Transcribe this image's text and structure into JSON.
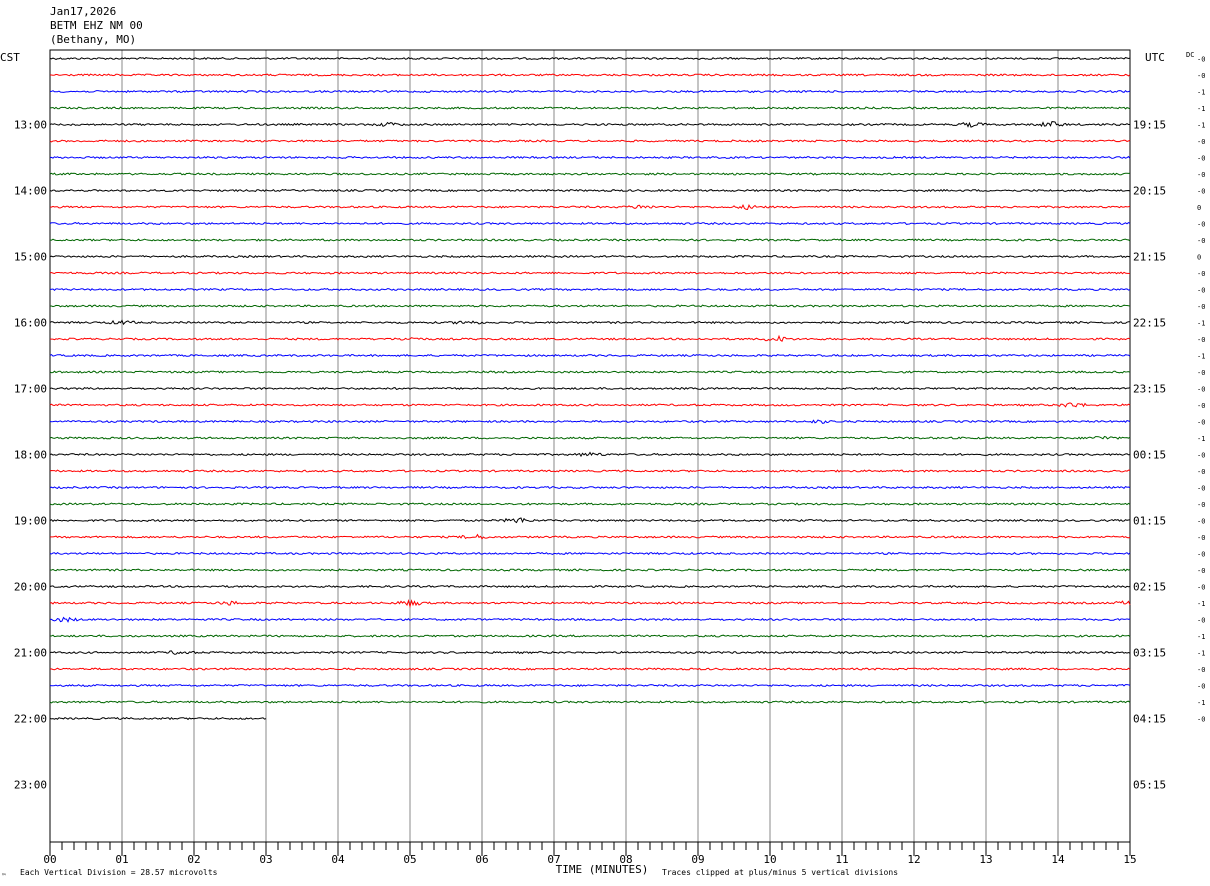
{
  "header": {
    "date": "Jan17,2026",
    "station": "BETM EHZ NM 00",
    "location": "(Bethany, MO)"
  },
  "labels": {
    "left_tz": "CST",
    "right_tz": "UTC",
    "dc_header": "DC",
    "x_title": "TIME (MINUTES)",
    "footer_left": "Each Vertical Division =   28.57 microvolts",
    "footer_right": "Traces clipped at plus/minus 5 vertical divisions",
    "corner_mark": "™"
  },
  "colors": {
    "trace_cycle": [
      "#000000",
      "#ff0000",
      "#0000ff",
      "#006600"
    ],
    "grid": "#888888",
    "axis": "#000000"
  },
  "chart_data": {
    "type": "line",
    "title": "BETM EHZ NM 00",
    "xlabel": "TIME (MINUTES)",
    "ylabel": "",
    "xlim": [
      0,
      15
    ],
    "x_ticks": [
      "00",
      "01",
      "02",
      "03",
      "04",
      "05",
      "06",
      "07",
      "08",
      "09",
      "10",
      "11",
      "12",
      "13",
      "14",
      "15"
    ],
    "grid": true,
    "rows_per_hour": 4,
    "total_rows": 44,
    "left_hour_labels": [
      "13:00",
      "14:00",
      "15:00",
      "16:00",
      "17:00",
      "18:00",
      "19:00",
      "20:00",
      "21:00",
      "22:00",
      "23:00"
    ],
    "right_hour_labels": [
      "19:15",
      "20:15",
      "21:15",
      "22:15",
      "23:15",
      "00:15",
      "01:15",
      "02:15",
      "03:15",
      "04:15",
      "05:15"
    ],
    "first_hour_label_row": 4,
    "rows_with_data": 41,
    "last_row_end_minute": 3,
    "dc_values": [
      "-0",
      "-0",
      "-1",
      "-1",
      "-1",
      "-0",
      "-0",
      "-0",
      "-0",
      "0",
      "-0",
      "-0",
      "0",
      "-0",
      "-0",
      "-0",
      "-1",
      "-0",
      "-1",
      "-0",
      "-0",
      "-0",
      "-0",
      "-1",
      "-0",
      "-0",
      "-0",
      "-0",
      "-0",
      "-0",
      "-0",
      "-0",
      "-0",
      "-1",
      "-0",
      "-1",
      "-1",
      "-0",
      "-0",
      "-1",
      "-0"
    ],
    "events": [
      {
        "row": 4,
        "minute": 4.7,
        "amp": 1.5
      },
      {
        "row": 4,
        "minute": 12.8,
        "amp": 1.8
      },
      {
        "row": 4,
        "minute": 13.9,
        "amp": 2.5
      },
      {
        "row": 9,
        "minute": 8.2,
        "amp": 1.5
      },
      {
        "row": 9,
        "minute": 9.7,
        "amp": 1.8
      },
      {
        "row": 17,
        "minute": 5.0,
        "amp": 1.2
      },
      {
        "row": 16,
        "minute": 1.0,
        "amp": 1.5
      },
      {
        "row": 16,
        "minute": 5.8,
        "amp": 1.5
      },
      {
        "row": 17,
        "minute": 10.1,
        "amp": 2.5
      },
      {
        "row": 21,
        "minute": 14.2,
        "amp": 2.2
      },
      {
        "row": 22,
        "minute": 10.7,
        "amp": 1.2
      },
      {
        "row": 23,
        "minute": 14.6,
        "amp": 1.5
      },
      {
        "row": 24,
        "minute": 7.5,
        "amp": 1.5
      },
      {
        "row": 28,
        "minute": 6.5,
        "amp": 2.5
      },
      {
        "row": 29,
        "minute": 5.9,
        "amp": 2.0
      },
      {
        "row": 33,
        "minute": 5.0,
        "amp": 2.5
      },
      {
        "row": 33,
        "minute": 2.5,
        "amp": 1.5
      },
      {
        "row": 33,
        "minute": 15.0,
        "amp": 2.0
      },
      {
        "row": 34,
        "minute": 0.2,
        "amp": 1.8
      },
      {
        "row": 36,
        "minute": 1.8,
        "amp": 1.5
      }
    ]
  }
}
